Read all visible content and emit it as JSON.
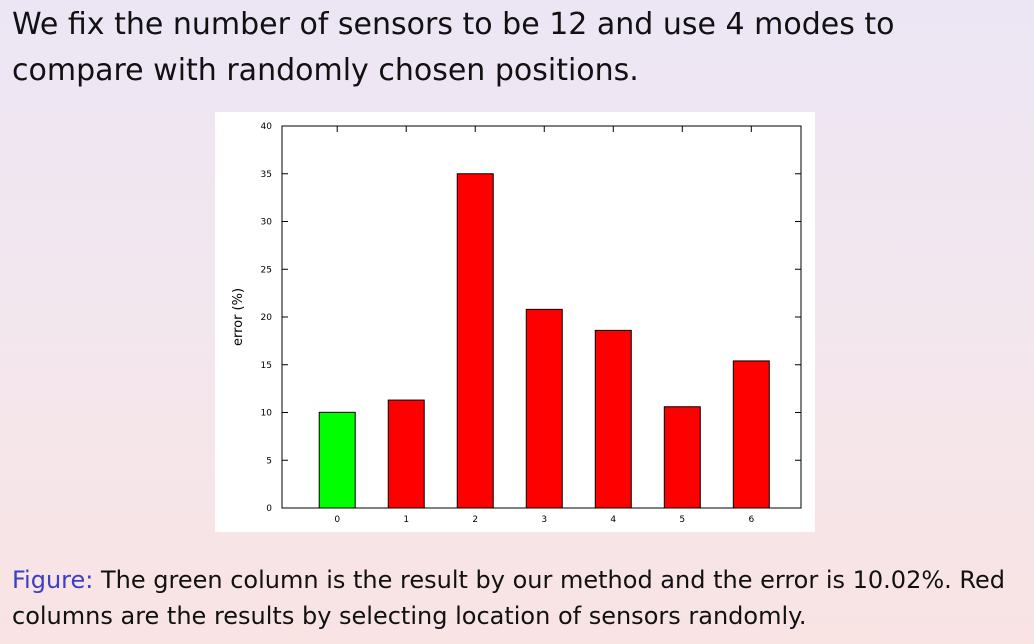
{
  "slide": {
    "heading": "We fix the number of sensors to be 12 and use 4 modes to compare with randomly chosen positions.",
    "caption_label": "Figure:",
    "caption_text": " The green column is the result by our method and the error is 10.02%. Red columns are the results by selecting location of sensors randomly."
  },
  "chart_data": {
    "type": "bar",
    "categories": [
      "0",
      "1",
      "2",
      "3",
      "4",
      "5",
      "6"
    ],
    "values": [
      10.02,
      11.3,
      35.0,
      20.8,
      18.6,
      10.6,
      15.4
    ],
    "colors": [
      "#00ff00",
      "#ff0000",
      "#ff0000",
      "#ff0000",
      "#ff0000",
      "#ff0000",
      "#ff0000"
    ],
    "title": "",
    "xlabel": "",
    "ylabel": "error (%)",
    "ylim": [
      0,
      40
    ],
    "yticks": [
      "0",
      "5",
      "10",
      "15",
      "20",
      "25",
      "30",
      "35",
      "40"
    ],
    "grid": false,
    "legend": "none"
  }
}
